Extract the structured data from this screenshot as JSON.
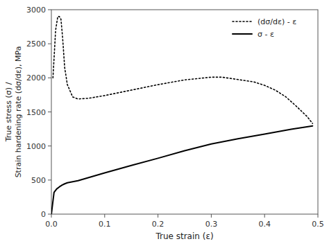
{
  "chart_data": {
    "type": "line",
    "xlabel": "True strain (ε)",
    "ylabel": [
      "True stress (σ) /",
      "Strain hardening rate (dσ/dε), MPa"
    ],
    "xlim": [
      0,
      0.5
    ],
    "ylim": [
      0,
      3000
    ],
    "xticks": [
      {
        "value": 0.0,
        "label": "0.0"
      },
      0.1,
      0.2,
      0.3,
      0.4,
      0.5
    ],
    "yticks": [
      0,
      500,
      1000,
      1500,
      2000,
      2500,
      3000
    ],
    "grid": false,
    "legend": "upper right",
    "series": [
      {
        "name": "(dσ/dε) - ε",
        "color": "#000000",
        "line_style": "dotted",
        "x": [
          0.003,
          0.008,
          0.012,
          0.015,
          0.018,
          0.021,
          0.025,
          0.03,
          0.04,
          0.05,
          0.07,
          0.1,
          0.15,
          0.2,
          0.25,
          0.3,
          0.32,
          0.35,
          0.38,
          0.4,
          0.42,
          0.44,
          0.46,
          0.48,
          0.49
        ],
        "values": [
          2000,
          2700,
          2900,
          2900,
          2860,
          2600,
          2150,
          1900,
          1720,
          1690,
          1700,
          1740,
          1820,
          1900,
          1970,
          2010,
          2010,
          1975,
          1940,
          1890,
          1820,
          1720,
          1580,
          1430,
          1330
        ]
      },
      {
        "name": "σ - ε",
        "color": "#000000",
        "line_style": "solid",
        "x": [
          0.0,
          0.005,
          0.01,
          0.015,
          0.02,
          0.025,
          0.03,
          0.05,
          0.08,
          0.1,
          0.15,
          0.2,
          0.25,
          0.3,
          0.35,
          0.4,
          0.45,
          0.49
        ],
        "values": [
          0,
          320,
          370,
          400,
          425,
          445,
          460,
          490,
          560,
          605,
          715,
          820,
          930,
          1030,
          1105,
          1175,
          1245,
          1295
        ]
      }
    ]
  }
}
